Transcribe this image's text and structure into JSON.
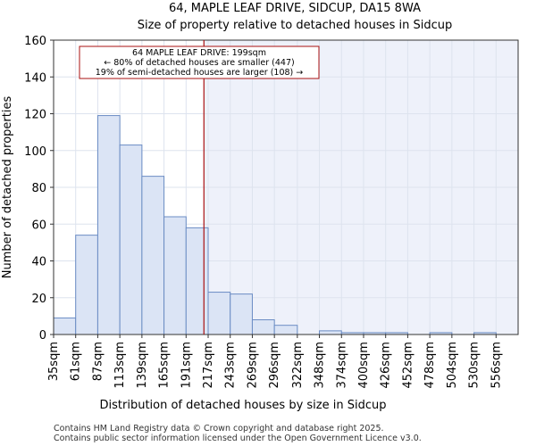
{
  "chart_data": {
    "type": "bar",
    "title": "64, MAPLE LEAF DRIVE, SIDCUP, DA15 8WA",
    "subtitle": "Size of property relative to detached houses in Sidcup",
    "xlabel": "Distribution of detached houses by size in Sidcup",
    "ylabel": "Number of detached properties",
    "ylim": [
      0,
      160
    ],
    "yticks": [
      0,
      20,
      40,
      60,
      80,
      100,
      120,
      140,
      160
    ],
    "bin_edges": [
      22,
      48,
      74,
      100,
      126,
      152,
      178,
      204,
      230,
      256,
      282,
      309,
      335,
      361,
      387,
      413,
      439,
      465,
      491,
      517,
      543,
      569
    ],
    "categories": [
      "35sqm",
      "61sqm",
      "87sqm",
      "113sqm",
      "139sqm",
      "165sqm",
      "191sqm",
      "217sqm",
      "243sqm",
      "269sqm",
      "296sqm",
      "322sqm",
      "348sqm",
      "374sqm",
      "400sqm",
      "426sqm",
      "452sqm",
      "478sqm",
      "504sqm",
      "530sqm",
      "556sqm"
    ],
    "values": [
      9,
      54,
      119,
      103,
      86,
      64,
      58,
      23,
      22,
      8,
      5,
      0,
      2,
      1,
      1,
      1,
      0,
      1,
      0,
      1,
      0
    ],
    "marker": {
      "value": 199,
      "color": "#aa1111",
      "label_lines": [
        "64 MAPLE LEAF DRIVE: 199sqm",
        "← 80% of detached houses are smaller (447)",
        "19% of semi-detached houses are larger (108) →"
      ]
    },
    "bar_fill": "#dbe4f5",
    "bar_edge": "#6b8cc4",
    "grid": true
  },
  "footer": {
    "line1": "Contains HM Land Registry data © Crown copyright and database right 2025.",
    "line2": "Contains public sector information licensed under the Open Government Licence v3.0."
  }
}
